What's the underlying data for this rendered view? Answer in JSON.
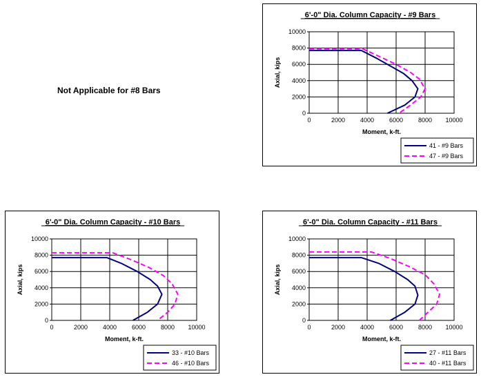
{
  "note": "Not Applicable for #8 Bars",
  "chart_data": [
    {
      "type": "line",
      "title": "6'-0\" Dia. Column Capacity - #9 Bars",
      "xlabel": "Moment, k-ft.",
      "ylabel": "Axial, kips",
      "xlim": [
        0,
        10000
      ],
      "ylim": [
        0,
        10000
      ],
      "xticks": [
        0,
        2000,
        4000,
        6000,
        8000,
        10000
      ],
      "yticks": [
        0,
        2000,
        4000,
        6000,
        8000,
        10000
      ],
      "grid": true,
      "legend": "bottom-right",
      "series": [
        {
          "name": "41 - #9 Bars",
          "color": "#000080",
          "dash": "solid",
          "x": [
            0,
            3600,
            4600,
            5700,
            6500,
            7100,
            7500,
            7300,
            6600,
            5400
          ],
          "y": [
            7700,
            7700,
            6800,
            5700,
            4900,
            4000,
            3000,
            2000,
            1000,
            0
          ]
        },
        {
          "name": "47 - #9 Bars",
          "color": "#FF00FF",
          "dash": "dashed",
          "x": [
            0,
            3700,
            4800,
            6000,
            7000,
            7600,
            8000,
            7700,
            7000,
            6200
          ],
          "y": [
            7900,
            7900,
            7000,
            6000,
            5000,
            4200,
            3000,
            2000,
            1000,
            0
          ]
        }
      ]
    },
    {
      "type": "line",
      "title": "6'-0\" Dia. Column Capacity - #10 Bars",
      "xlabel": "Moment, k-ft.",
      "ylabel": "Axial, kips",
      "xlim": [
        0,
        10000
      ],
      "ylim": [
        0,
        10000
      ],
      "xticks": [
        0,
        2000,
        4000,
        6000,
        8000,
        10000
      ],
      "yticks": [
        0,
        2000,
        4000,
        6000,
        8000,
        10000
      ],
      "grid": true,
      "legend": "bottom-right",
      "series": [
        {
          "name": "33 - #10 Bars",
          "color": "#000080",
          "dash": "solid",
          "x": [
            0,
            3800,
            4800,
            5900,
            6800,
            7300,
            7600,
            7300,
            6600,
            5600
          ],
          "y": [
            7700,
            7700,
            7000,
            6000,
            5000,
            4200,
            3200,
            2000,
            1000,
            0
          ]
        },
        {
          "name": "46 - #10 Bars",
          "color": "#FF00FF",
          "dash": "dashed",
          "x": [
            0,
            4200,
            5400,
            6700,
            7700,
            8300,
            8700,
            8500,
            8000,
            7300
          ],
          "y": [
            8300,
            8300,
            7500,
            6500,
            5500,
            4500,
            3200,
            2000,
            1000,
            0
          ]
        }
      ]
    },
    {
      "type": "line",
      "title": "6'-0\" Dia. Column Capacity - #11 Bars",
      "xlabel": "Moment, k-ft.",
      "ylabel": "Axial, kips",
      "xlim": [
        0,
        10000
      ],
      "ylim": [
        0,
        10000
      ],
      "xticks": [
        0,
        2000,
        4000,
        6000,
        8000,
        10000
      ],
      "yticks": [
        0,
        2000,
        4000,
        6000,
        8000,
        10000
      ],
      "grid": true,
      "legend": "bottom-right",
      "series": [
        {
          "name": "27 - #11 Bars",
          "color": "#000080",
          "dash": "solid",
          "x": [
            0,
            3600,
            4800,
            5900,
            6800,
            7300,
            7500,
            7300,
            6600,
            5600
          ],
          "y": [
            7700,
            7700,
            7000,
            6000,
            5000,
            4200,
            3100,
            2000,
            1000,
            0
          ]
        },
        {
          "name": "40 - #11 Bars",
          "color": "#FF00FF",
          "dash": "dashed",
          "x": [
            0,
            4300,
            5600,
            6900,
            8000,
            8600,
            9000,
            8800,
            8200,
            7600
          ],
          "y": [
            8400,
            8400,
            7600,
            6600,
            5600,
            4500,
            3200,
            2000,
            1000,
            0
          ]
        }
      ]
    }
  ]
}
